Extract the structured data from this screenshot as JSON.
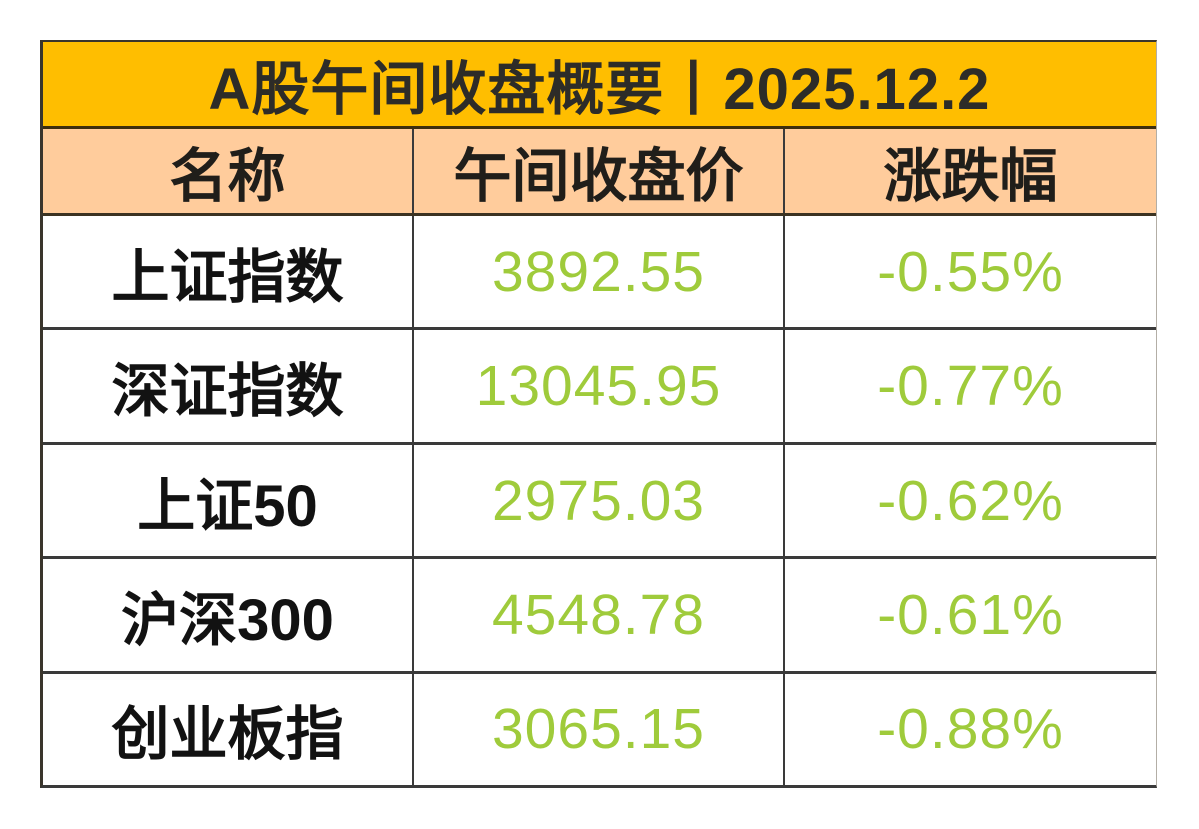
{
  "chart_data": {
    "type": "table",
    "title": "A股午间收盘概要丨2025.12.2",
    "columns": [
      "名称",
      "午间收盘价",
      "涨跌幅"
    ],
    "rows": [
      [
        "上证指数",
        "3892.55",
        "-0.55%"
      ],
      [
        "深证指数",
        "13045.95",
        "-0.77%"
      ],
      [
        "上证50",
        "2975.03",
        "-0.62%"
      ],
      [
        "沪深300",
        "4548.78",
        "-0.61%"
      ],
      [
        "创业板指",
        "3065.15",
        "-0.88%"
      ]
    ]
  },
  "colors": {
    "title_bg": "#FFBE00",
    "header_bg": "#FFCC9C",
    "value_green": "#9FCB3B",
    "grid_line": "#3A3A3A",
    "text_dark": "#121212",
    "page_bg": "#FFFFFF"
  }
}
